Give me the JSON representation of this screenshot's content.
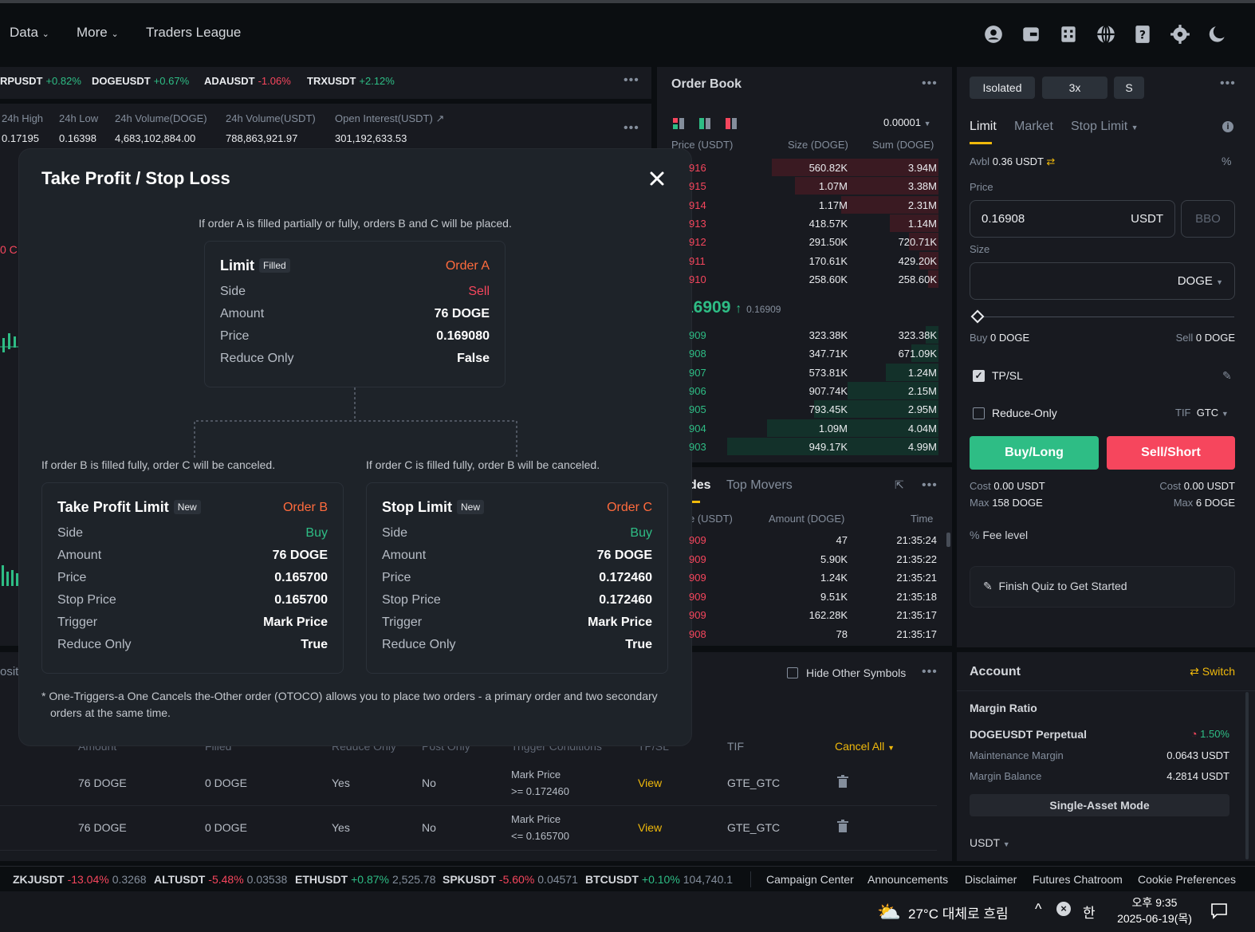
{
  "nav": {
    "data": "Data",
    "more": "More",
    "league": "Traders League"
  },
  "tickers": [
    {
      "sym": "RPUSDT",
      "chg": "+0.82%",
      "up": true
    },
    {
      "sym": "DOGEUSDT",
      "chg": "+0.67%",
      "up": true
    },
    {
      "sym": "ADAUSDT",
      "chg": "-1.06%",
      "up": false
    },
    {
      "sym": "TRXUSDT",
      "chg": "+2.12%",
      "up": true
    }
  ],
  "stats": [
    {
      "label": "24h High",
      "value": "0.17195"
    },
    {
      "label": "24h Low",
      "value": "0.16398"
    },
    {
      "label": "24h Volume(DOGE)",
      "value": "4,683,102,884.00"
    },
    {
      "label": "24h Volume(USDT)",
      "value": "788,863,921.97"
    },
    {
      "label": "Open Interest(USDT)",
      "value": "301,192,633.53"
    }
  ],
  "chart_fragment": "0 C",
  "orderbook": {
    "title": "Order Book",
    "precision": "0.00001",
    "col_price": "Price (USDT)",
    "col_size": "Size (DOGE)",
    "col_sum": "Sum (DOGE)",
    "asks": [
      {
        "p": "916",
        "s": "560.82K",
        "t": "3.94M",
        "bar": 0.79
      },
      {
        "p": "915",
        "s": "1.07M",
        "t": "3.38M",
        "bar": 0.68
      },
      {
        "p": "914",
        "s": "1.17M",
        "t": "2.31M",
        "bar": 0.46
      },
      {
        "p": "913",
        "s": "418.57K",
        "t": "1.14M",
        "bar": 0.23
      },
      {
        "p": "912",
        "s": "291.50K",
        "t": "720.71K",
        "bar": 0.14
      },
      {
        "p": "911",
        "s": "170.61K",
        "t": "429.20K",
        "bar": 0.09
      },
      {
        "p": "910",
        "s": "258.60K",
        "t": "258.60K",
        "bar": 0.05
      }
    ],
    "mid_price": "16909",
    "mid_mark": "0.16909",
    "bids": [
      {
        "p": "909",
        "s": "323.38K",
        "t": "323.38K",
        "bar": 0.06
      },
      {
        "p": "908",
        "s": "347.71K",
        "t": "671.09K",
        "bar": 0.13
      },
      {
        "p": "907",
        "s": "573.81K",
        "t": "1.24M",
        "bar": 0.25
      },
      {
        "p": "906",
        "s": "907.74K",
        "t": "2.15M",
        "bar": 0.43
      },
      {
        "p": "905",
        "s": "793.45K",
        "t": "2.95M",
        "bar": 0.59
      },
      {
        "p": "904",
        "s": "1.09M",
        "t": "4.04M",
        "bar": 0.81
      },
      {
        "p": "903",
        "s": "949.17K",
        "t": "4.99M",
        "bar": 1.0
      }
    ]
  },
  "trades": {
    "tab_trades": "des",
    "tab_movers": "Top Movers",
    "col_price": "e (USDT)",
    "col_amount": "Amount (DOGE)",
    "col_time": "Time",
    "rows": [
      {
        "p": "909",
        "a": "47",
        "t": "21:35:24"
      },
      {
        "p": "909",
        "a": "5.90K",
        "t": "21:35:22"
      },
      {
        "p": "909",
        "a": "1.24K",
        "t": "21:35:21"
      },
      {
        "p": "909",
        "a": "9.51K",
        "t": "21:35:18"
      },
      {
        "p": "909",
        "a": "162.28K",
        "t": "21:35:17"
      },
      {
        "p": "908",
        "a": "78",
        "t": "21:35:17"
      }
    ]
  },
  "trade_panel": {
    "mode_isolated": "Isolated",
    "leverage": "3x",
    "mode_s": "S",
    "tab_limit": "Limit",
    "tab_market": "Market",
    "tab_stop": "Stop Limit",
    "avbl_label": "Avbl",
    "avbl_value": "0.36 USDT",
    "price_label": "Price",
    "price_value": "0.16908",
    "price_unit": "USDT",
    "bbo": "BBO",
    "size_label": "Size",
    "size_unit": "DOGE",
    "buy_label": "Buy",
    "buy_value": "0 DOGE",
    "sell_label": "Sell",
    "sell_value": "0 DOGE",
    "tpsl": "TP/SL",
    "reduce_only": "Reduce-Only",
    "tif_label": "TIF",
    "tif_value": "GTC",
    "buy_btn": "Buy/Long",
    "sell_btn": "Sell/Short",
    "cost_label": "Cost",
    "cost_buy": "0.00 USDT",
    "cost_sell": "0.00 USDT",
    "max_label": "Max",
    "max_buy": "158 DOGE",
    "max_sell": "6 DOGE",
    "fee": "Fee level",
    "quiz": "Finish Quiz to Get Started"
  },
  "account": {
    "title": "Account",
    "switch": "Switch",
    "margin_ratio": "Margin Ratio",
    "contract": "DOGEUSDT Perpetual",
    "ratio": "1.50%",
    "maint_label": "Maintenance Margin",
    "maint_value": "0.0643 USDT",
    "balance_label": "Margin Balance",
    "balance_value": "4.2814 USDT",
    "single_asset": "Single-Asset Mode",
    "asset": "USDT"
  },
  "orders": {
    "hide_other": "Hide Other Symbols",
    "positions_fragment": "osit",
    "headers": [
      "Amount",
      "Filled",
      "Reduce Only",
      "Post Only",
      "Trigger Conditions",
      "TP/SL",
      "TIF"
    ],
    "cancel_all": "Cancel All",
    "rows": [
      {
        "amount": "76 DOGE",
        "filled": "0 DOGE",
        "reduce": "Yes",
        "post": "No",
        "trig1": "Mark Price",
        "trig2": ">= 0.172460",
        "tpsl": "View",
        "tif": "GTE_GTC"
      },
      {
        "amount": "76 DOGE",
        "filled": "0 DOGE",
        "reduce": "Yes",
        "post": "No",
        "trig1": "Mark Price",
        "trig2": "<= 0.165700",
        "tpsl": "View",
        "tif": "GTE_GTC"
      }
    ]
  },
  "modal": {
    "title": "Take Profit / Stop Loss",
    "note_a": "If order A is filled partially or fully, orders B and C will be placed.",
    "note_b": "If order B is filled fully, order C will be canceled.",
    "note_c": "If order C is filled fully, order B will be canceled.",
    "footnote_1": "* One-Triggers-a One Cancels the-Other order (OTOCO) allows you to place two orders - a primary order and two secondary",
    "footnote_2": "orders at the same time.",
    "order_a": {
      "title": "Limit",
      "badge": "Filled",
      "label": "Order A",
      "rows": [
        {
          "k": "Side",
          "v": "Sell",
          "color": "#f6465d"
        },
        {
          "k": "Amount",
          "v": "76 DOGE"
        },
        {
          "k": "Price",
          "v": "0.169080"
        },
        {
          "k": "Reduce Only",
          "v": "False"
        }
      ]
    },
    "order_b": {
      "title": "Take Profit Limit",
      "badge": "New",
      "label": "Order B",
      "rows": [
        {
          "k": "Side",
          "v": "Buy",
          "color": "#2ebd85"
        },
        {
          "k": "Amount",
          "v": "76 DOGE"
        },
        {
          "k": "Price",
          "v": "0.165700"
        },
        {
          "k": "Stop Price",
          "v": "0.165700"
        },
        {
          "k": "Trigger",
          "v": "Mark Price"
        },
        {
          "k": "Reduce Only",
          "v": "True"
        }
      ]
    },
    "order_c": {
      "title": "Stop Limit",
      "badge": "New",
      "label": "Order C",
      "rows": [
        {
          "k": "Side",
          "v": "Buy",
          "color": "#2ebd85"
        },
        {
          "k": "Amount",
          "v": "76 DOGE"
        },
        {
          "k": "Price",
          "v": "0.172460"
        },
        {
          "k": "Stop Price",
          "v": "0.172460"
        },
        {
          "k": "Trigger",
          "v": "Mark Price"
        },
        {
          "k": "Reduce Only",
          "v": "True"
        }
      ]
    }
  },
  "footer_tickers": [
    {
      "sym": "ZKJUSDT",
      "chg": "-13.04%",
      "px": "0.3268",
      "up": false
    },
    {
      "sym": "ALTUSDT",
      "chg": "-5.48%",
      "px": "0.03538",
      "up": false
    },
    {
      "sym": "ETHUSDT",
      "chg": "+0.87%",
      "px": "2,525.78",
      "up": true
    },
    {
      "sym": "SPKUSDT",
      "chg": "-5.60%",
      "px": "0.04571",
      "up": false
    },
    {
      "sym": "BTCUSDT",
      "chg": "+0.10%",
      "px": "104,740.1",
      "up": true
    }
  ],
  "footer_links": [
    "Campaign Center",
    "Announcements",
    "Disclaimer",
    "Futures Chatroom",
    "Cookie Preferences"
  ],
  "taskbar": {
    "weather": "27°C 대체로 흐림",
    "ime": "한",
    "time": "오후 9:35",
    "date": "2025-06-19(목)"
  },
  "colors": {
    "up": "#2ebd85",
    "down": "#f6465d",
    "accent": "#f0b90b",
    "order_label": "#ff6b3d"
  }
}
